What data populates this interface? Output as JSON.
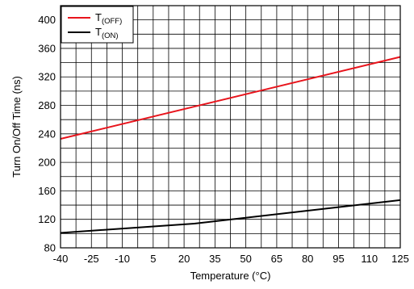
{
  "chart_data": {
    "type": "line",
    "title": "",
    "xlabel": "Temperature (°C)",
    "ylabel": "Turn On/Off Time (ns)",
    "xlim": [
      -40,
      125
    ],
    "ylim": [
      80,
      420
    ],
    "x_ticks": [
      -40,
      -25,
      -10,
      5,
      20,
      35,
      50,
      65,
      80,
      95,
      110,
      125
    ],
    "y_ticks": [
      80,
      120,
      160,
      200,
      240,
      280,
      320,
      360,
      400
    ],
    "grid": true,
    "legend_position": "top-left",
    "series": [
      {
        "name": "T",
        "name_sub": "(OFF)",
        "color": "#e8141c",
        "x": [
          -40,
          125
        ],
        "y": [
          233,
          348
        ]
      },
      {
        "name": "T",
        "name_sub": "(ON)",
        "color": "#000000",
        "x": [
          -40,
          25,
          125
        ],
        "y": [
          101,
          114,
          147
        ]
      }
    ]
  }
}
